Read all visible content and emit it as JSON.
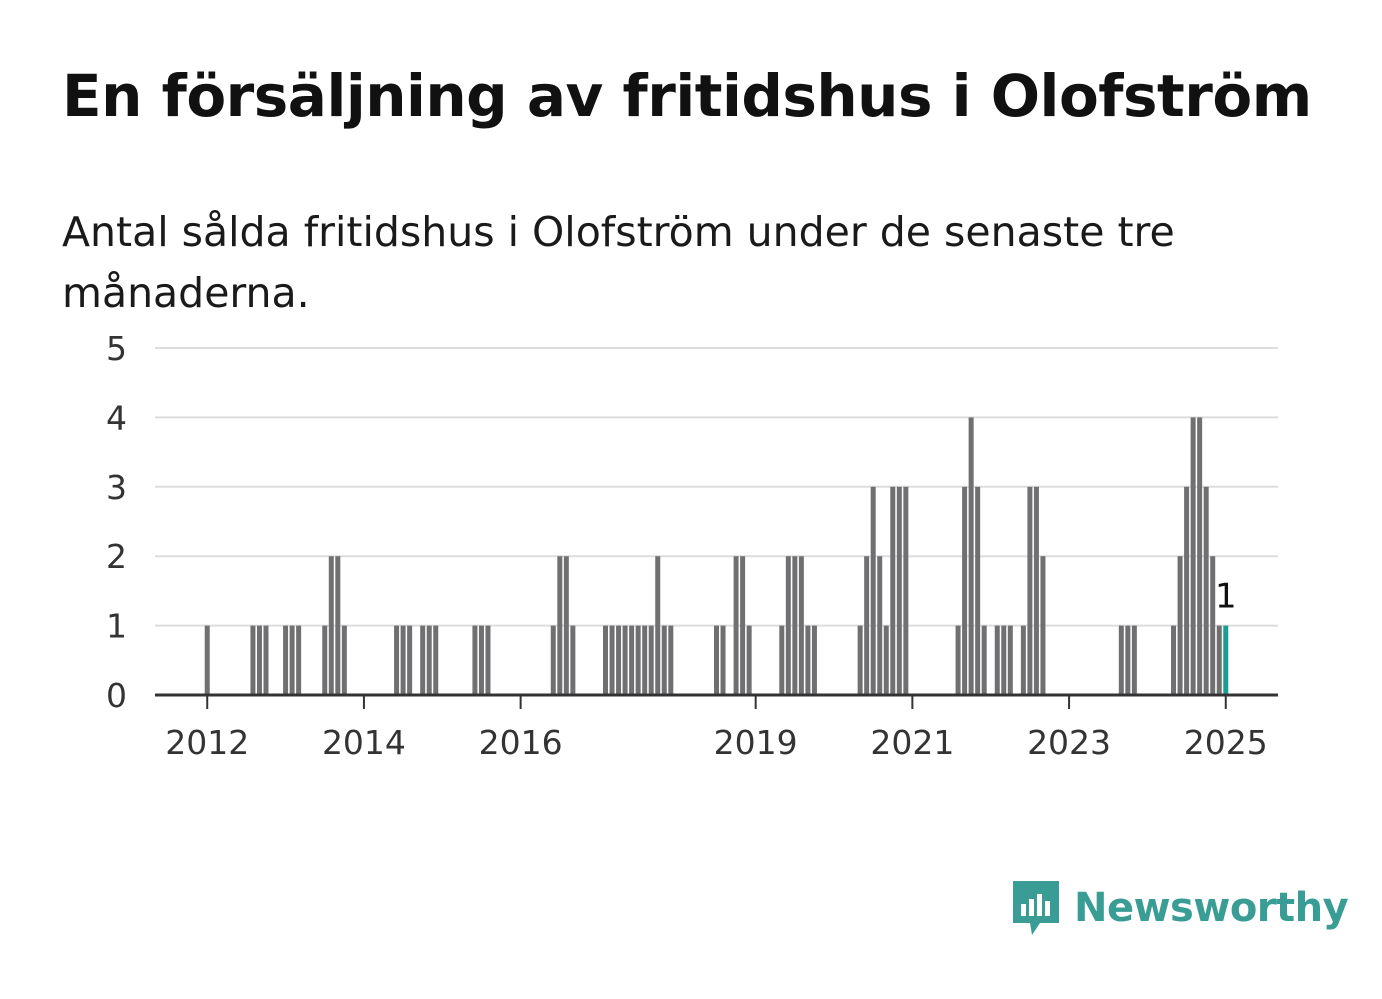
{
  "title": "En försäljning av fritidshus i Olofström",
  "subtitle": "Antal sålda fritidshus i Olofström under de senaste tre månaderna.",
  "brand": {
    "name": "Newsworthy",
    "icon": "newsworthy-logo-icon",
    "color": "#3a9d95"
  },
  "colors": {
    "bar": "#707072",
    "highlight": "#1a9e93",
    "grid": "#dddddd",
    "axis": "#333333"
  },
  "chart_data": {
    "type": "bar",
    "ylim": [
      0,
      5
    ],
    "yticks": [
      0,
      1,
      2,
      3,
      4,
      5
    ],
    "xlim": [
      "2011-05",
      "2025-09"
    ],
    "xticks": [
      {
        "x": "2012-01",
        "label": "2012"
      },
      {
        "x": "2014-01",
        "label": "2014"
      },
      {
        "x": "2016-01",
        "label": "2016"
      },
      {
        "x": "2019-01",
        "label": "2019"
      },
      {
        "x": "2021-01",
        "label": "2021"
      },
      {
        "x": "2023-01",
        "label": "2023"
      },
      {
        "x": "2025-01",
        "label": "2025"
      }
    ],
    "grid": true,
    "bars": [
      {
        "x": "2012-01",
        "value": 1
      },
      {
        "x": "2012-08",
        "value": 1
      },
      {
        "x": "2012-09",
        "value": 1
      },
      {
        "x": "2012-10",
        "value": 1
      },
      {
        "x": "2013-01",
        "value": 1
      },
      {
        "x": "2013-02",
        "value": 1
      },
      {
        "x": "2013-03",
        "value": 1
      },
      {
        "x": "2013-07",
        "value": 1
      },
      {
        "x": "2013-08",
        "value": 2
      },
      {
        "x": "2013-09",
        "value": 2
      },
      {
        "x": "2013-10",
        "value": 1
      },
      {
        "x": "2014-06",
        "value": 1
      },
      {
        "x": "2014-07",
        "value": 1
      },
      {
        "x": "2014-08",
        "value": 1
      },
      {
        "x": "2014-10",
        "value": 1
      },
      {
        "x": "2014-11",
        "value": 1
      },
      {
        "x": "2014-12",
        "value": 1
      },
      {
        "x": "2015-06",
        "value": 1
      },
      {
        "x": "2015-07",
        "value": 1
      },
      {
        "x": "2015-08",
        "value": 1
      },
      {
        "x": "2016-06",
        "value": 1
      },
      {
        "x": "2016-07",
        "value": 2
      },
      {
        "x": "2016-08",
        "value": 2
      },
      {
        "x": "2016-09",
        "value": 1
      },
      {
        "x": "2017-02",
        "value": 1
      },
      {
        "x": "2017-03",
        "value": 1
      },
      {
        "x": "2017-04",
        "value": 1
      },
      {
        "x": "2017-05",
        "value": 1
      },
      {
        "x": "2017-06",
        "value": 1
      },
      {
        "x": "2017-07",
        "value": 1
      },
      {
        "x": "2017-08",
        "value": 1
      },
      {
        "x": "2017-09",
        "value": 1
      },
      {
        "x": "2017-10",
        "value": 2
      },
      {
        "x": "2017-11",
        "value": 1
      },
      {
        "x": "2017-12",
        "value": 1
      },
      {
        "x": "2018-07",
        "value": 1
      },
      {
        "x": "2018-08",
        "value": 1
      },
      {
        "x": "2018-10",
        "value": 2
      },
      {
        "x": "2018-11",
        "value": 2
      },
      {
        "x": "2018-12",
        "value": 1
      },
      {
        "x": "2019-05",
        "value": 1
      },
      {
        "x": "2019-06",
        "value": 2
      },
      {
        "x": "2019-07",
        "value": 2
      },
      {
        "x": "2019-08",
        "value": 2
      },
      {
        "x": "2019-09",
        "value": 1
      },
      {
        "x": "2019-10",
        "value": 1
      },
      {
        "x": "2020-05",
        "value": 1
      },
      {
        "x": "2020-06",
        "value": 2
      },
      {
        "x": "2020-07",
        "value": 3
      },
      {
        "x": "2020-08",
        "value": 2
      },
      {
        "x": "2020-09",
        "value": 1
      },
      {
        "x": "2020-10",
        "value": 3
      },
      {
        "x": "2020-11",
        "value": 3
      },
      {
        "x": "2020-12",
        "value": 3
      },
      {
        "x": "2021-08",
        "value": 1
      },
      {
        "x": "2021-09",
        "value": 3
      },
      {
        "x": "2021-10",
        "value": 4
      },
      {
        "x": "2021-11",
        "value": 3
      },
      {
        "x": "2021-12",
        "value": 1
      },
      {
        "x": "2022-02",
        "value": 1
      },
      {
        "x": "2022-03",
        "value": 1
      },
      {
        "x": "2022-04",
        "value": 1
      },
      {
        "x": "2022-06",
        "value": 1
      },
      {
        "x": "2022-07",
        "value": 3
      },
      {
        "x": "2022-08",
        "value": 3
      },
      {
        "x": "2022-09",
        "value": 2
      },
      {
        "x": "2023-09",
        "value": 1
      },
      {
        "x": "2023-10",
        "value": 1
      },
      {
        "x": "2023-11",
        "value": 1
      },
      {
        "x": "2024-05",
        "value": 1
      },
      {
        "x": "2024-06",
        "value": 2
      },
      {
        "x": "2024-07",
        "value": 3
      },
      {
        "x": "2024-08",
        "value": 4
      },
      {
        "x": "2024-09",
        "value": 4
      },
      {
        "x": "2024-10",
        "value": 3
      },
      {
        "x": "2024-11",
        "value": 2
      },
      {
        "x": "2024-12",
        "value": 1
      },
      {
        "x": "2025-01",
        "value": 1,
        "highlight": true,
        "label": "1"
      }
    ]
  }
}
